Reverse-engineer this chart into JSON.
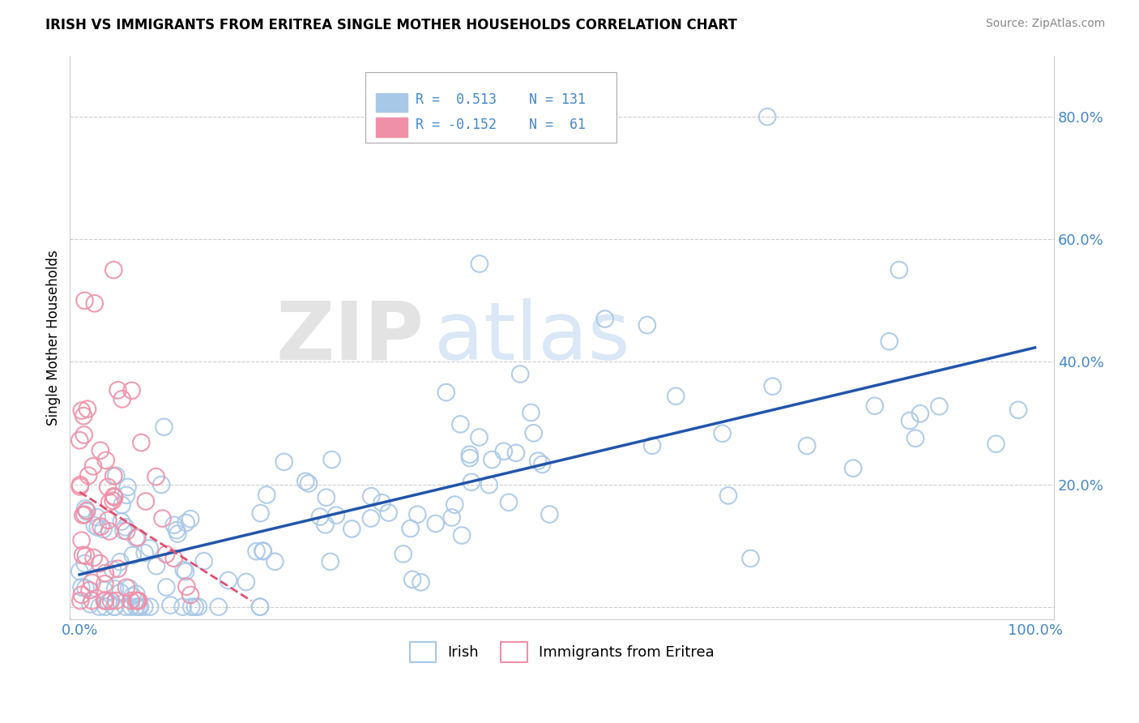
{
  "title": "IRISH VS IMMIGRANTS FROM ERITREA SINGLE MOTHER HOUSEHOLDS CORRELATION CHART",
  "source": "Source: ZipAtlas.com",
  "ylabel": "Single Mother Households",
  "legend_irish_R": "0.513",
  "legend_irish_N": "131",
  "legend_eritrea_R": "-0.152",
  "legend_eritrea_N": "61",
  "legend_label_irish": "Irish",
  "legend_label_eritrea": "Immigrants from Eritrea",
  "irish_color": "#a8c8e8",
  "eritrea_color": "#f090a8",
  "irish_line_color": "#2255aa",
  "eritrea_line_color": "#e05070",
  "background_color": "#ffffff",
  "watermark_zip": "ZIP",
  "watermark_atlas": "atlas",
  "title_fontsize": 12,
  "tick_color": "#4488cc",
  "axis_color": "#cccccc",
  "grid_color": "#cccccc"
}
